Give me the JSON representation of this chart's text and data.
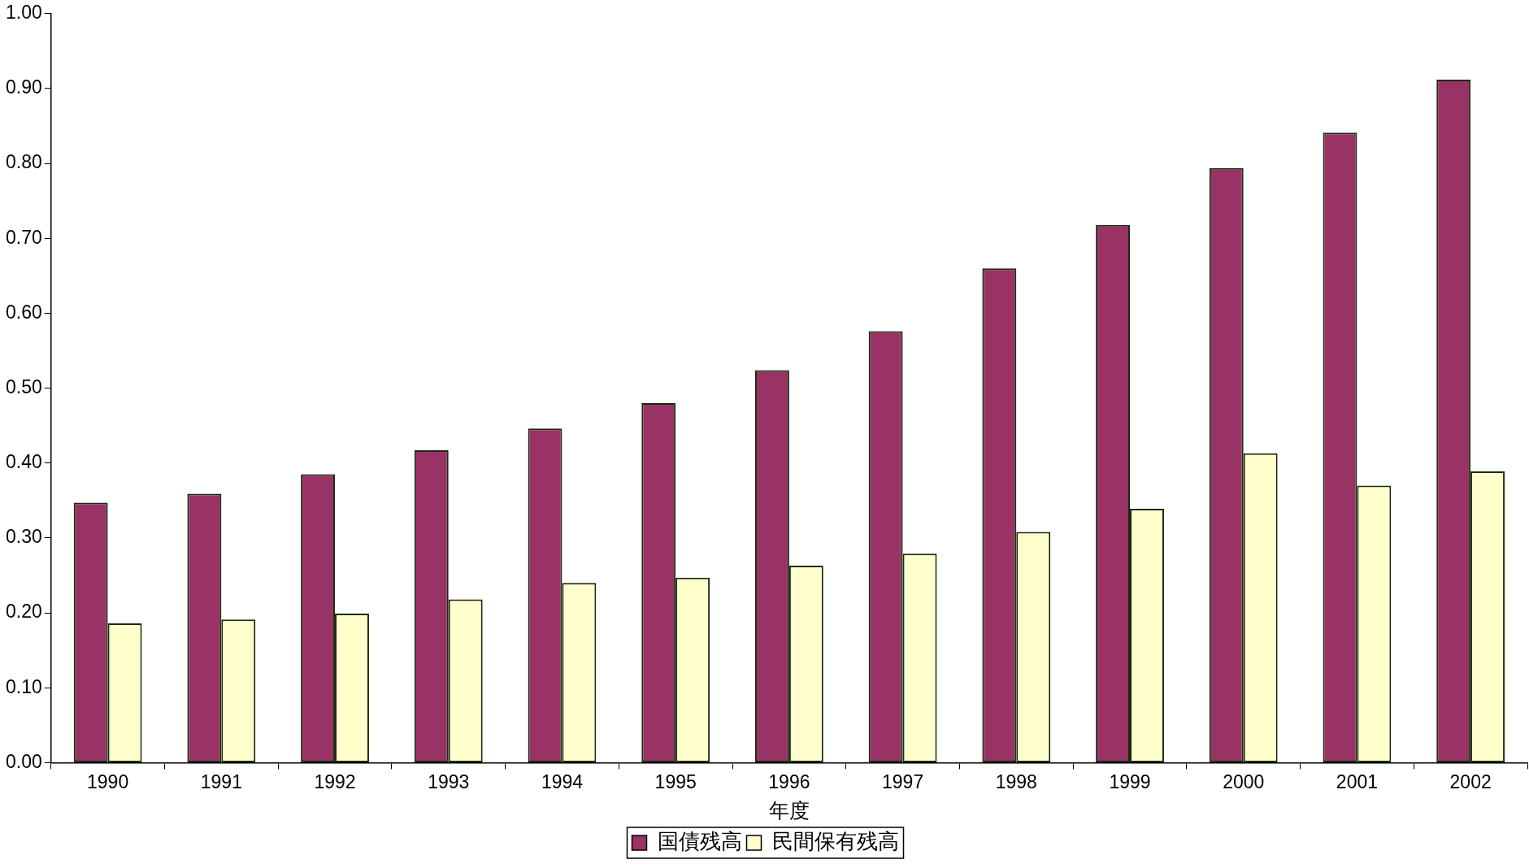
{
  "chart_data": {
    "type": "bar",
    "xlabel": "年度",
    "categories": [
      "1990",
      "1991",
      "1992",
      "1993",
      "1994",
      "1995",
      "1996",
      "1997",
      "1998",
      "1999",
      "2000",
      "2001",
      "2002"
    ],
    "series": [
      {
        "name": "国債残高",
        "color": "#993366",
        "values": [
          0.347,
          0.359,
          0.385,
          0.417,
          0.446,
          0.48,
          0.524,
          0.576,
          0.66,
          0.718,
          0.794,
          0.841,
          0.912
        ]
      },
      {
        "name": "民間保有残高",
        "color": "#ffffcc",
        "values": [
          0.186,
          0.191,
          0.199,
          0.218,
          0.24,
          0.247,
          0.263,
          0.279,
          0.308,
          0.339,
          0.413,
          0.37,
          0.389
        ]
      }
    ],
    "ylim": [
      0,
      1
    ],
    "yticks": [
      {
        "value": 0,
        "label": "0.00"
      },
      {
        "value": 0.1,
        "label": "0.10"
      },
      {
        "value": 0.2,
        "label": "0.20"
      },
      {
        "value": 0.3,
        "label": "0.30"
      },
      {
        "value": 0.4,
        "label": "0.40"
      },
      {
        "value": 0.5,
        "label": "0.50"
      },
      {
        "value": 0.6,
        "label": "0.60"
      },
      {
        "value": 0.7,
        "label": "0.70"
      },
      {
        "value": 0.8,
        "label": "0.80"
      },
      {
        "value": 0.9,
        "label": "0.90"
      },
      {
        "value": 1,
        "label": "1.00"
      }
    ],
    "grid": false,
    "legend": "bottom"
  }
}
